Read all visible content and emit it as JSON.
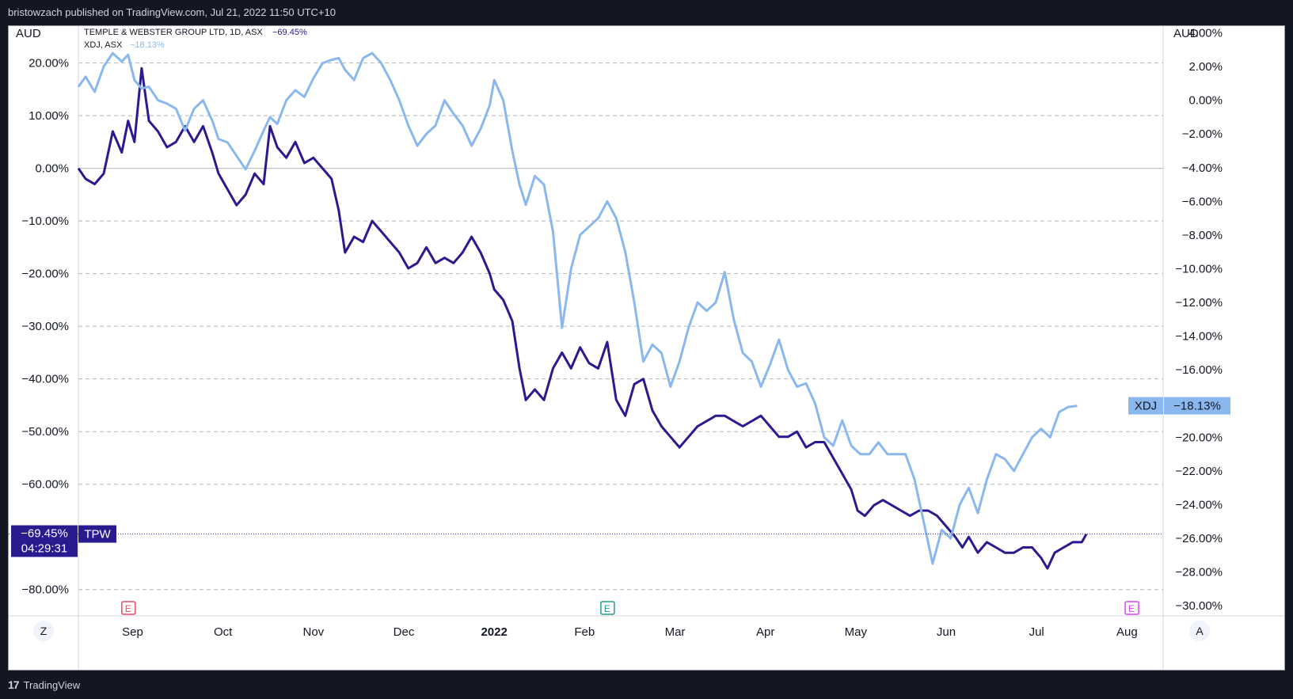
{
  "header": {
    "published_text": "bristowzach published on TradingView.com, Jul 21, 2022 11:50 UTC+10"
  },
  "footer": {
    "brand_label": "TradingView",
    "brand_icon": "tradingview-logo-icon"
  },
  "colors": {
    "background": "#131722",
    "tpw_line": "#2a1a8f",
    "xdj_line": "#8ab8ee",
    "grid": "#b2b5be",
    "axis_text": "#131722",
    "earnings_red": "#e84a5f",
    "earnings_teal": "#1e9e8a",
    "earnings_magenta": "#e040fb"
  },
  "chart_ui": {
    "left_currency": "AUD",
    "right_currency": "AUD",
    "legend": [
      {
        "label": "TEMPLE & WEBSTER GROUP LTD, 1D, ASX",
        "value": "−69.45%"
      },
      {
        "label": "XDJ, ASX",
        "value": "−18.13%"
      }
    ],
    "tpw_price_tag": {
      "value": "−69.45%",
      "countdown": "04:29:31",
      "symbol": "TPW"
    },
    "xdj_price_tag": {
      "symbol": "XDJ",
      "value": "−18.13%"
    },
    "left_corner_button": "Z",
    "right_corner_button": "A",
    "event_markers": [
      {
        "label": "E",
        "date_index": 0,
        "color_key": "earnings_red"
      },
      {
        "label": "E",
        "date_index": 1,
        "color_key": "earnings_teal"
      },
      {
        "label": "E",
        "date_index": 2,
        "color_key": "earnings_magenta"
      }
    ]
  },
  "chart_data": {
    "type": "line",
    "x_ticks": [
      "Sep",
      "Oct",
      "Nov",
      "Dec",
      "2022",
      "Feb",
      "Mar",
      "Apr",
      "May",
      "Jun",
      "Jul",
      "Aug"
    ],
    "x_tick_bold": "2022",
    "x_range_months": [
      0,
      12
    ],
    "x_tick_months": [
      0.6,
      1.6,
      2.6,
      3.6,
      4.6,
      5.6,
      6.6,
      7.6,
      8.6,
      9.6,
      10.6,
      11.6
    ],
    "event_months": [
      0.55,
      5.85,
      11.65
    ],
    "left_axis": {
      "ticks": [
        "20.00%",
        "10.00%",
        "0.00%",
        "−10.00%",
        "−20.00%",
        "−30.00%",
        "−40.00%",
        "−50.00%",
        "−60.00%",
        "−80.00%"
      ],
      "tick_values": [
        20,
        10,
        0,
        -10,
        -20,
        -30,
        -40,
        -50,
        -60,
        -80
      ],
      "range": [
        -85,
        27
      ]
    },
    "right_axis": {
      "ticks": [
        "4.00%",
        "2.00%",
        "0.00%",
        "−2.00%",
        "−4.00%",
        "−6.00%",
        "−8.00%",
        "−10.00%",
        "−12.00%",
        "−14.00%",
        "−16.00%",
        "−18.00%",
        "−20.00%",
        "−22.00%",
        "−24.00%",
        "−26.00%",
        "−28.00%",
        "−30.00%"
      ],
      "tick_values": [
        4,
        2,
        0,
        -2,
        -4,
        -6,
        -8,
        -10,
        -12,
        -14,
        -16,
        -18,
        -20,
        -22,
        -24,
        -26,
        -28,
        -30
      ],
      "range": [
        -30.6,
        4.4
      ]
    },
    "series": [
      {
        "name": "TEMPLE & WEBSTER GROUP LTD, 1D, ASX",
        "short": "TPW",
        "axis": "left",
        "color_key": "tpw_line",
        "last": -69.45,
        "points": [
          [
            0.0,
            0
          ],
          [
            0.08,
            -2
          ],
          [
            0.18,
            -3
          ],
          [
            0.28,
            -1
          ],
          [
            0.38,
            7
          ],
          [
            0.48,
            3
          ],
          [
            0.55,
            9
          ],
          [
            0.62,
            5
          ],
          [
            0.7,
            19
          ],
          [
            0.78,
            9
          ],
          [
            0.88,
            7
          ],
          [
            0.98,
            4
          ],
          [
            1.08,
            5
          ],
          [
            1.18,
            8
          ],
          [
            1.28,
            5
          ],
          [
            1.38,
            8
          ],
          [
            1.48,
            3
          ],
          [
            1.55,
            -1
          ],
          [
            1.65,
            -4
          ],
          [
            1.75,
            -7
          ],
          [
            1.85,
            -5
          ],
          [
            1.95,
            -1
          ],
          [
            2.05,
            -3
          ],
          [
            2.12,
            8
          ],
          [
            2.2,
            4
          ],
          [
            2.3,
            2
          ],
          [
            2.4,
            5
          ],
          [
            2.5,
            1
          ],
          [
            2.6,
            2
          ],
          [
            2.7,
            0
          ],
          [
            2.8,
            -2
          ],
          [
            2.88,
            -8
          ],
          [
            2.95,
            -16
          ],
          [
            3.05,
            -13
          ],
          [
            3.15,
            -14
          ],
          [
            3.25,
            -10
          ],
          [
            3.35,
            -12
          ],
          [
            3.45,
            -14
          ],
          [
            3.55,
            -16
          ],
          [
            3.65,
            -19
          ],
          [
            3.75,
            -18
          ],
          [
            3.85,
            -15
          ],
          [
            3.95,
            -18
          ],
          [
            4.05,
            -17
          ],
          [
            4.15,
            -18
          ],
          [
            4.25,
            -16
          ],
          [
            4.35,
            -13
          ],
          [
            4.45,
            -16
          ],
          [
            4.55,
            -20
          ],
          [
            4.6,
            -23
          ],
          [
            4.7,
            -25
          ],
          [
            4.8,
            -29
          ],
          [
            4.88,
            -38
          ],
          [
            4.95,
            -44
          ],
          [
            5.05,
            -42
          ],
          [
            5.15,
            -44
          ],
          [
            5.25,
            -38
          ],
          [
            5.35,
            -35
          ],
          [
            5.45,
            -38
          ],
          [
            5.55,
            -34
          ],
          [
            5.65,
            -37
          ],
          [
            5.75,
            -38
          ],
          [
            5.85,
            -33
          ],
          [
            5.95,
            -44
          ],
          [
            6.05,
            -47
          ],
          [
            6.15,
            -41
          ],
          [
            6.25,
            -40
          ],
          [
            6.35,
            -46
          ],
          [
            6.45,
            -49
          ],
          [
            6.55,
            -51
          ],
          [
            6.65,
            -53
          ],
          [
            6.75,
            -51
          ],
          [
            6.85,
            -49
          ],
          [
            6.95,
            -48
          ],
          [
            7.05,
            -47
          ],
          [
            7.15,
            -47
          ],
          [
            7.25,
            -48
          ],
          [
            7.35,
            -49
          ],
          [
            7.45,
            -48
          ],
          [
            7.55,
            -47
          ],
          [
            7.65,
            -49
          ],
          [
            7.75,
            -51
          ],
          [
            7.85,
            -51
          ],
          [
            7.95,
            -50
          ],
          [
            8.05,
            -53
          ],
          [
            8.15,
            -52
          ],
          [
            8.25,
            -52
          ],
          [
            8.35,
            -55
          ],
          [
            8.45,
            -58
          ],
          [
            8.55,
            -61
          ],
          [
            8.62,
            -65
          ],
          [
            8.7,
            -66
          ],
          [
            8.8,
            -64
          ],
          [
            8.9,
            -63
          ],
          [
            9.0,
            -64
          ],
          [
            9.1,
            -65
          ],
          [
            9.2,
            -66
          ],
          [
            9.3,
            -65
          ],
          [
            9.4,
            -65
          ],
          [
            9.5,
            -66
          ],
          [
            9.6,
            -68
          ],
          [
            9.7,
            -70
          ],
          [
            9.78,
            -72
          ],
          [
            9.85,
            -70
          ],
          [
            9.95,
            -73
          ],
          [
            10.05,
            -71
          ],
          [
            10.15,
            -72
          ],
          [
            10.25,
            -73
          ],
          [
            10.35,
            -73
          ],
          [
            10.45,
            -72
          ],
          [
            10.55,
            -72
          ],
          [
            10.65,
            -74
          ],
          [
            10.72,
            -76
          ],
          [
            10.8,
            -73
          ],
          [
            10.9,
            -72
          ],
          [
            11.0,
            -71
          ],
          [
            11.1,
            -71
          ],
          [
            11.15,
            -69.45
          ]
        ]
      },
      {
        "name": "XDJ, ASX",
        "short": "XDJ",
        "axis": "right",
        "color_key": "xdj_line",
        "last": -18.13,
        "points": [
          [
            0.0,
            0.8
          ],
          [
            0.08,
            1.4
          ],
          [
            0.18,
            0.5
          ],
          [
            0.28,
            2
          ],
          [
            0.38,
            2.8
          ],
          [
            0.48,
            2.3
          ],
          [
            0.55,
            2.7
          ],
          [
            0.62,
            1.2
          ],
          [
            0.7,
            0.7
          ],
          [
            0.78,
            0.8
          ],
          [
            0.88,
            0
          ],
          [
            0.98,
            -0.2
          ],
          [
            1.08,
            -0.5
          ],
          [
            1.18,
            -1.8
          ],
          [
            1.28,
            -0.5
          ],
          [
            1.38,
            0
          ],
          [
            1.48,
            -1.2
          ],
          [
            1.55,
            -2.3
          ],
          [
            1.65,
            -2.5
          ],
          [
            1.75,
            -3.3
          ],
          [
            1.85,
            -4.1
          ],
          [
            1.95,
            -3
          ],
          [
            2.05,
            -1.8
          ],
          [
            2.12,
            -1
          ],
          [
            2.2,
            -1.4
          ],
          [
            2.3,
            0
          ],
          [
            2.4,
            0.6
          ],
          [
            2.5,
            0.2
          ],
          [
            2.6,
            1.3
          ],
          [
            2.7,
            2.2
          ],
          [
            2.8,
            2.4
          ],
          [
            2.88,
            2.5
          ],
          [
            2.95,
            1.8
          ],
          [
            3.05,
            1.2
          ],
          [
            3.15,
            2.5
          ],
          [
            3.25,
            2.8
          ],
          [
            3.35,
            2.2
          ],
          [
            3.45,
            1.2
          ],
          [
            3.55,
            0
          ],
          [
            3.65,
            -1.5
          ],
          [
            3.75,
            -2.7
          ],
          [
            3.85,
            -2
          ],
          [
            3.95,
            -1.5
          ],
          [
            4.05,
            0
          ],
          [
            4.15,
            -0.8
          ],
          [
            4.25,
            -1.5
          ],
          [
            4.35,
            -2.7
          ],
          [
            4.45,
            -1.7
          ],
          [
            4.55,
            -0.3
          ],
          [
            4.6,
            1.2
          ],
          [
            4.7,
            0
          ],
          [
            4.8,
            -3
          ],
          [
            4.88,
            -5
          ],
          [
            4.95,
            -6.2
          ],
          [
            5.05,
            -4.5
          ],
          [
            5.15,
            -5
          ],
          [
            5.25,
            -7.8
          ],
          [
            5.35,
            -13.5
          ],
          [
            5.45,
            -10
          ],
          [
            5.55,
            -8
          ],
          [
            5.65,
            -7.5
          ],
          [
            5.75,
            -7
          ],
          [
            5.85,
            -6
          ],
          [
            5.95,
            -7
          ],
          [
            6.05,
            -9
          ],
          [
            6.15,
            -12
          ],
          [
            6.25,
            -15.5
          ],
          [
            6.35,
            -14.5
          ],
          [
            6.45,
            -15
          ],
          [
            6.55,
            -17
          ],
          [
            6.65,
            -15.5
          ],
          [
            6.75,
            -13.5
          ],
          [
            6.85,
            -12
          ],
          [
            6.95,
            -12.5
          ],
          [
            7.05,
            -12
          ],
          [
            7.15,
            -10.2
          ],
          [
            7.25,
            -13
          ],
          [
            7.35,
            -15
          ],
          [
            7.45,
            -15.5
          ],
          [
            7.55,
            -17
          ],
          [
            7.65,
            -15.7
          ],
          [
            7.75,
            -14.2
          ],
          [
            7.85,
            -16
          ],
          [
            7.95,
            -17
          ],
          [
            8.05,
            -16.8
          ],
          [
            8.15,
            -18
          ],
          [
            8.25,
            -20
          ],
          [
            8.35,
            -20.5
          ],
          [
            8.45,
            -19
          ],
          [
            8.55,
            -20.5
          ],
          [
            8.65,
            -21
          ],
          [
            8.75,
            -21
          ],
          [
            8.85,
            -20.3
          ],
          [
            8.95,
            -21
          ],
          [
            9.05,
            -21
          ],
          [
            9.15,
            -21
          ],
          [
            9.25,
            -22.5
          ],
          [
            9.35,
            -25
          ],
          [
            9.45,
            -27.5
          ],
          [
            9.55,
            -25.5
          ],
          [
            9.65,
            -26
          ],
          [
            9.75,
            -24
          ],
          [
            9.85,
            -23
          ],
          [
            9.95,
            -24.5
          ],
          [
            10.05,
            -22.5
          ],
          [
            10.15,
            -21
          ],
          [
            10.25,
            -21.3
          ],
          [
            10.35,
            -22
          ],
          [
            10.45,
            -21
          ],
          [
            10.55,
            -20
          ],
          [
            10.65,
            -19.5
          ],
          [
            10.75,
            -20
          ],
          [
            10.85,
            -18.5
          ],
          [
            10.95,
            -18.2
          ],
          [
            11.05,
            -18.13
          ]
        ]
      }
    ]
  }
}
